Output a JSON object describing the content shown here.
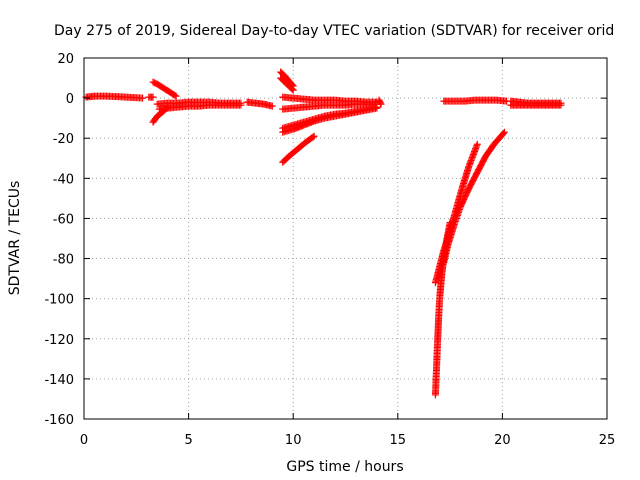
{
  "chart_data": {
    "type": "scatter",
    "title": "Day 275 of 2019, Sidereal Day-to-day VTEC variation (SDTVAR) for receiver orid",
    "xlabel": "GPS time / hours",
    "ylabel": "SDTVAR / TECUs",
    "xlim": [
      0,
      25
    ],
    "ylim": [
      -160,
      20
    ],
    "xticks": [
      "0",
      "5",
      "10",
      "15",
      "20",
      "25"
    ],
    "yticks": [
      "20",
      "0",
      "-20",
      "-40",
      "-60",
      "-80",
      "-100",
      "-120",
      "-140",
      "-160"
    ],
    "grid": true,
    "marker": "+",
    "color": "#ff0000",
    "series": [
      {
        "x": [
          0.1,
          0.5,
          1.0,
          1.5,
          2.0,
          2.5,
          2.8
        ],
        "y": [
          0.5,
          1.0,
          1.0,
          0.8,
          0.5,
          0.2,
          0.0
        ]
      },
      {
        "x": [
          3.1,
          3.3
        ],
        "y": [
          0.5,
          0.5
        ]
      },
      {
        "x": [
          3.3,
          3.5,
          3.8,
          4.1,
          4.4
        ],
        "y": [
          8.0,
          7.0,
          5.0,
          3.0,
          1.0
        ]
      },
      {
        "x": [
          3.3,
          3.5,
          3.8,
          4.0
        ],
        "y": [
          -12.0,
          -9.0,
          -6.5,
          -4.5
        ]
      },
      {
        "x": [
          3.5,
          4.0,
          4.5,
          5.0,
          5.5,
          6.0,
          6.5,
          7.0,
          7.5
        ],
        "y": [
          -3.0,
          -2.5,
          -2.5,
          -2.0,
          -2.0,
          -2.0,
          -2.5,
          -2.5,
          -2.5
        ]
      },
      {
        "x": [
          3.6,
          4.0,
          4.5,
          5.0,
          5.5,
          6.0,
          6.5,
          7.0,
          7.5
        ],
        "y": [
          -5.5,
          -5.0,
          -4.5,
          -4.0,
          -4.0,
          -3.5,
          -3.5,
          -3.5,
          -3.5
        ]
      },
      {
        "x": [
          7.8,
          8.2,
          8.6,
          9.0
        ],
        "y": [
          -2.0,
          -2.5,
          -3.0,
          -4.0
        ]
      },
      {
        "x": [
          9.4,
          9.6,
          9.8,
          10.0
        ],
        "y": [
          13.0,
          11.0,
          8.5,
          6.0
        ]
      },
      {
        "x": [
          9.4,
          9.6,
          9.8,
          10.0
        ],
        "y": [
          10.0,
          8.0,
          6.0,
          4.0
        ]
      },
      {
        "x": [
          9.5,
          10.0,
          10.5,
          11.0,
          11.5,
          12.0,
          12.5,
          13.0,
          13.5,
          14.0
        ],
        "y": [
          0.5,
          0.0,
          -0.5,
          -1.0,
          -1.0,
          -1.0,
          -1.5,
          -1.5,
          -2.0,
          -2.0
        ]
      },
      {
        "x": [
          9.5,
          10.0,
          10.5,
          11.0,
          11.5,
          12.0,
          12.5,
          13.0,
          13.5,
          14.0
        ],
        "y": [
          -5.5,
          -5.0,
          -4.5,
          -4.0,
          -3.5,
          -3.5,
          -3.5,
          -3.0,
          -3.0,
          -3.0
        ]
      },
      {
        "x": [
          9.5,
          10.0,
          10.5,
          11.0,
          11.5,
          12.0,
          12.5,
          13.0,
          13.5,
          14.0
        ],
        "y": [
          -17.0,
          -15.5,
          -13.5,
          -11.5,
          -10.0,
          -9.0,
          -8.0,
          -7.0,
          -6.0,
          -5.0
        ]
      },
      {
        "x": [
          9.5,
          10.0,
          10.5,
          11.0,
          11.5,
          12.0,
          12.5,
          13.0,
          13.5,
          14.0
        ],
        "y": [
          -15.0,
          -13.5,
          -12.0,
          -10.5,
          -9.0,
          -8.0,
          -7.5,
          -6.5,
          -5.5,
          -4.5
        ]
      },
      {
        "x": [
          9.5,
          9.8,
          10.2,
          10.6,
          11.0
        ],
        "y": [
          -32.0,
          -29.0,
          -25.5,
          -22.0,
          -19.0
        ]
      },
      {
        "x": [
          14.1,
          14.2
        ],
        "y": [
          -1.0,
          -3.0
        ]
      },
      {
        "x": [
          17.2,
          17.7,
          18.2,
          18.7,
          19.2,
          19.7,
          20.2
        ],
        "y": [
          -1.5,
          -1.5,
          -1.5,
          -1.0,
          -1.0,
          -1.0,
          -1.5
        ]
      },
      {
        "x": [
          20.4,
          20.8,
          21.2,
          21.6,
          22.0,
          22.4,
          22.8
        ],
        "y": [
          -1.5,
          -2.0,
          -2.5,
          -2.5,
          -2.5,
          -2.5,
          -2.5
        ]
      },
      {
        "x": [
          20.4,
          20.8,
          21.2,
          21.6,
          22.0,
          22.4,
          22.8
        ],
        "y": [
          -3.5,
          -3.5,
          -3.5,
          -3.5,
          -3.5,
          -3.5,
          -3.5
        ]
      },
      {
        "x": [
          16.8,
          16.85,
          16.9,
          16.95,
          17.0,
          17.1,
          17.2,
          17.35,
          17.5
        ],
        "y": [
          -148.0,
          -135.0,
          -122.0,
          -110.0,
          -100.0,
          -88.0,
          -80.0,
          -70.0,
          -62.0
        ]
      },
      {
        "x": [
          16.8,
          17.0,
          17.2,
          17.5,
          17.8,
          18.1,
          18.4,
          18.8
        ],
        "y": [
          -92.0,
          -84.0,
          -76.0,
          -66.0,
          -55.0,
          -44.0,
          -34.0,
          -23.0
        ]
      },
      {
        "x": [
          17.2,
          17.4,
          17.7,
          18.0,
          18.4,
          18.8,
          19.2,
          19.6,
          20.1
        ],
        "y": [
          -82.0,
          -73.0,
          -63.0,
          -54.0,
          -45.0,
          -37.0,
          -29.0,
          -23.0,
          -17.0
        ]
      }
    ]
  }
}
